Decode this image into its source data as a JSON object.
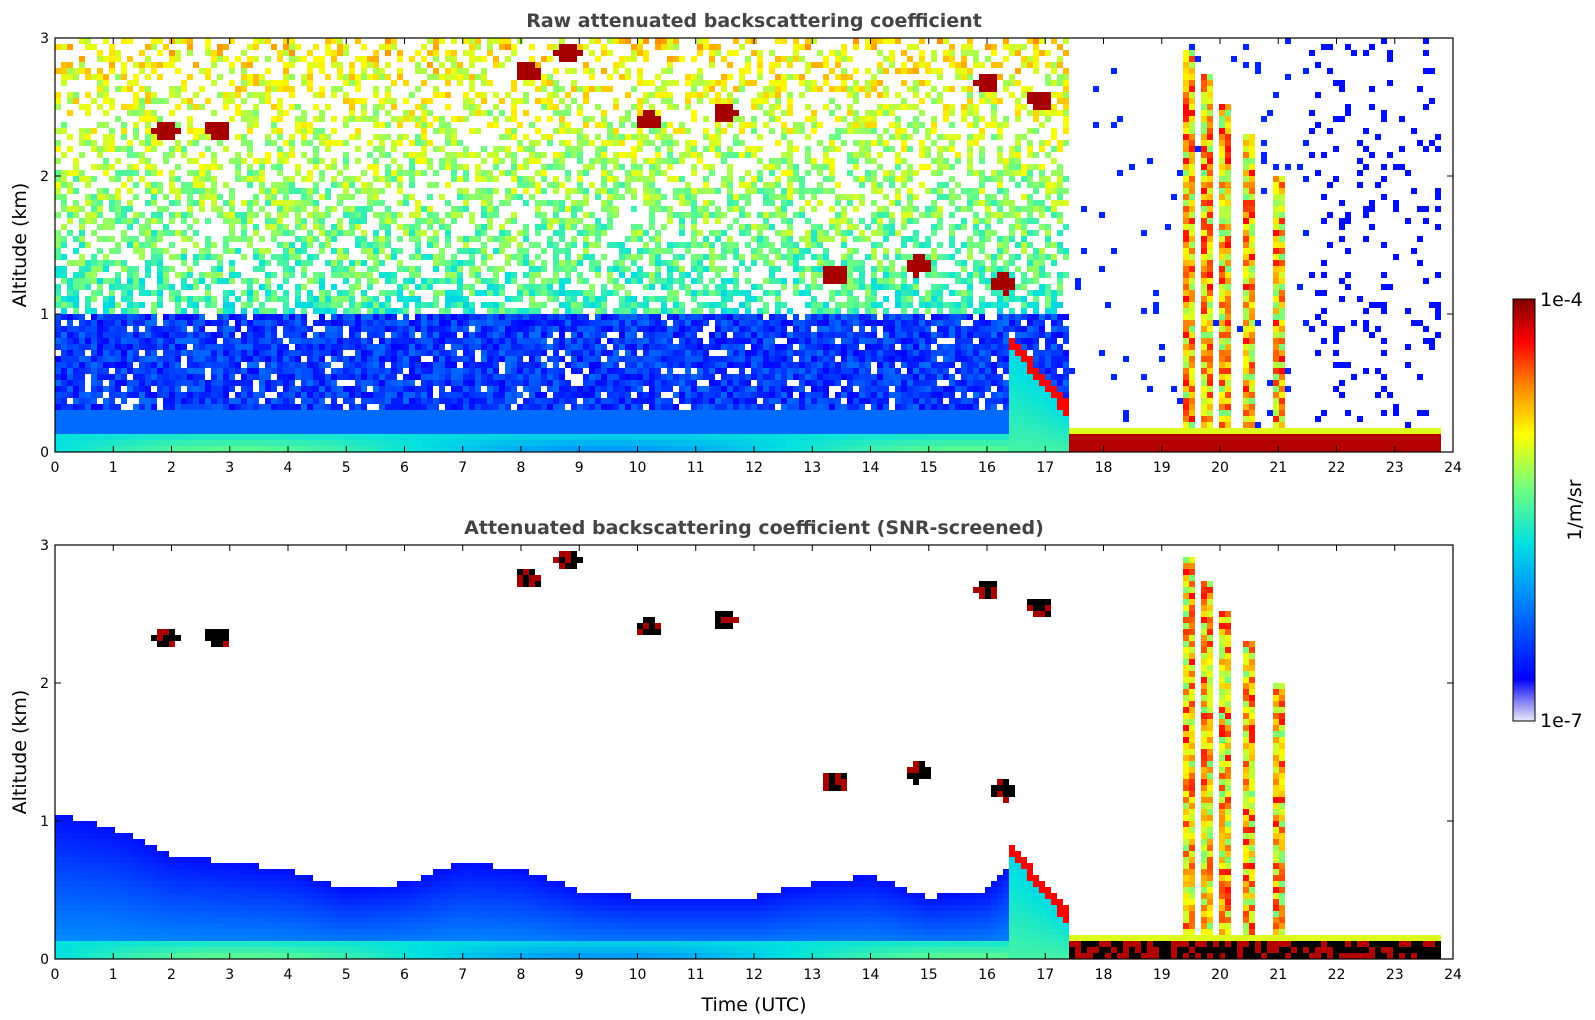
{
  "chart_data": [
    {
      "type": "heatmap",
      "title": "Raw attenuated backscattering coefficient",
      "xlabel": "",
      "ylabel": "Altitude (km)",
      "xlim": [
        0,
        24
      ],
      "ylim": [
        0,
        3
      ],
      "xticks": [
        "0",
        "1",
        "2",
        "3",
        "4",
        "5",
        "6",
        "7",
        "8",
        "9",
        "10",
        "11",
        "12",
        "13",
        "14",
        "15",
        "16",
        "17",
        "18",
        "19",
        "20",
        "21",
        "22",
        "23",
        "24"
      ],
      "yticks": [
        "0",
        "1",
        "2",
        "3"
      ],
      "grid": false,
      "layers": {
        "surface_layer_top_km": 0.15,
        "boundary_layer_top_km": 1.0,
        "fog_start_utc": 17.4,
        "fog_top_km": 0.12,
        "precip_columns_utc": [
          19.5,
          19.8,
          20.1,
          20.5,
          21.0
        ]
      },
      "cloud_patches": [
        {
          "t": 1.9,
          "alt_km": 2.32
        },
        {
          "t": 2.8,
          "alt_km": 2.33
        },
        {
          "t": 8.1,
          "alt_km": 2.75
        },
        {
          "t": 8.8,
          "alt_km": 2.88
        },
        {
          "t": 10.2,
          "alt_km": 2.4
        },
        {
          "t": 11.5,
          "alt_km": 2.45
        },
        {
          "t": 16.0,
          "alt_km": 2.68
        },
        {
          "t": 16.9,
          "alt_km": 2.55
        },
        {
          "t": 13.4,
          "alt_km": 1.28
        },
        {
          "t": 14.8,
          "alt_km": 1.35
        },
        {
          "t": 16.3,
          "alt_km": 1.22
        }
      ]
    },
    {
      "type": "heatmap",
      "title": "Attenuated backscattering coefficient (SNR-screened)",
      "xlabel": "Time (UTC)",
      "ylabel": "Altitude (km)",
      "xlim": [
        0,
        24
      ],
      "ylim": [
        0,
        3
      ],
      "xticks": [
        "0",
        "1",
        "2",
        "3",
        "4",
        "5",
        "6",
        "7",
        "8",
        "9",
        "10",
        "11",
        "12",
        "13",
        "14",
        "15",
        "16",
        "17",
        "18",
        "19",
        "20",
        "21",
        "22",
        "23",
        "24"
      ],
      "yticks": [
        "0",
        "1",
        "2",
        "3"
      ],
      "grid": false,
      "screened_top_km": [
        {
          "t": 0.0,
          "alt_km": 1.05
        },
        {
          "t": 1.0,
          "alt_km": 0.95
        },
        {
          "t": 2.0,
          "alt_km": 0.75
        },
        {
          "t": 3.0,
          "alt_km": 0.7
        },
        {
          "t": 4.0,
          "alt_km": 0.65
        },
        {
          "t": 5.0,
          "alt_km": 0.5
        },
        {
          "t": 6.0,
          "alt_km": 0.55
        },
        {
          "t": 7.0,
          "alt_km": 0.7
        },
        {
          "t": 8.0,
          "alt_km": 0.65
        },
        {
          "t": 9.0,
          "alt_km": 0.5
        },
        {
          "t": 10.0,
          "alt_km": 0.45
        },
        {
          "t": 11.0,
          "alt_km": 0.45
        },
        {
          "t": 12.0,
          "alt_km": 0.45
        },
        {
          "t": 13.0,
          "alt_km": 0.55
        },
        {
          "t": 14.0,
          "alt_km": 0.6
        },
        {
          "t": 15.0,
          "alt_km": 0.45
        },
        {
          "t": 16.0,
          "alt_km": 0.5
        },
        {
          "t": 16.5,
          "alt_km": 0.75
        },
        {
          "t": 17.3,
          "alt_km": 0.35
        }
      ]
    }
  ],
  "colorbar": {
    "label": "1/m/sr",
    "max_label": "1e-4",
    "min_label": "1e-7",
    "scale": "log",
    "colors": [
      "#e8e8f8",
      "#0000ff",
      "#00a0ff",
      "#00e8e8",
      "#80ff80",
      "#ffff00",
      "#ff8000",
      "#ff0000",
      "#800000"
    ]
  }
}
